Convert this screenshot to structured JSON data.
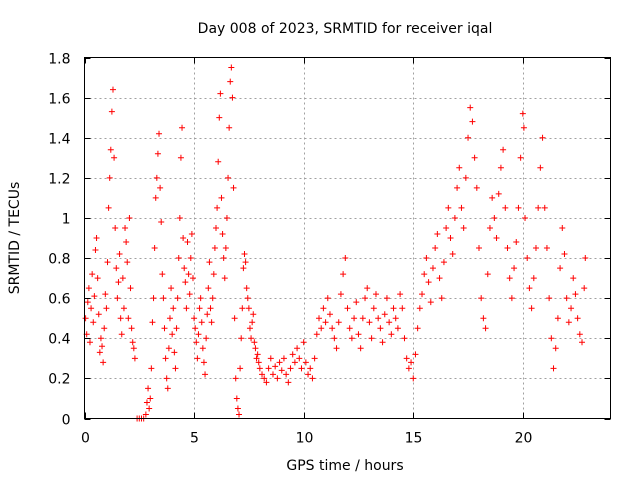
{
  "chart_data": {
    "type": "scatter",
    "title": "Day 008 of 2023, SRMTID for receiver iqal",
    "xlabel": "GPS time / hours",
    "ylabel": "SRMTID / TECUs",
    "xlim": [
      0,
      24
    ],
    "ylim": [
      0,
      1.8
    ],
    "xticks": [
      0,
      5,
      10,
      15,
      20
    ],
    "xtick_labels": [
      "0",
      "5",
      "10",
      "15",
      "20"
    ],
    "yticks": [
      0,
      0.2,
      0.4,
      0.6,
      0.8,
      1.0,
      1.2,
      1.4,
      1.6,
      1.8
    ],
    "ytick_labels": [
      "0",
      "0.2",
      "0.4",
      "0.6",
      "0.8",
      "1",
      "1.2",
      "1.4",
      "1.6",
      "1.8"
    ],
    "grid": true,
    "marker": "plus",
    "color": "#ff0000",
    "series": [
      {
        "name": "SRMTID",
        "points": [
          [
            0.05,
            0.5
          ],
          [
            0.1,
            0.42
          ],
          [
            0.15,
            0.58
          ],
          [
            0.2,
            0.65
          ],
          [
            0.25,
            0.38
          ],
          [
            0.3,
            0.55
          ],
          [
            0.35,
            0.72
          ],
          [
            0.4,
            0.48
          ],
          [
            0.45,
            0.61
          ],
          [
            0.5,
            0.84
          ],
          [
            0.55,
            0.9
          ],
          [
            0.6,
            0.7
          ],
          [
            0.65,
            0.52
          ],
          [
            0.7,
            0.33
          ],
          [
            0.75,
            0.4
          ],
          [
            0.8,
            0.36
          ],
          [
            0.85,
            0.28
          ],
          [
            0.9,
            0.45
          ],
          [
            0.95,
            0.62
          ],
          [
            1.0,
            0.55
          ],
          [
            1.05,
            0.78
          ],
          [
            1.1,
            1.05
          ],
          [
            1.15,
            1.2
          ],
          [
            1.2,
            1.34
          ],
          [
            1.25,
            1.53
          ],
          [
            1.3,
            1.64
          ],
          [
            1.35,
            1.3
          ],
          [
            1.4,
            0.95
          ],
          [
            1.45,
            0.75
          ],
          [
            1.5,
            0.6
          ],
          [
            1.55,
            0.68
          ],
          [
            1.6,
            0.82
          ],
          [
            1.65,
            0.5
          ],
          [
            1.7,
            0.42
          ],
          [
            1.75,
            0.7
          ],
          [
            1.8,
            0.55
          ],
          [
            1.85,
            0.95
          ],
          [
            1.9,
            0.88
          ],
          [
            1.95,
            0.78
          ],
          [
            2.0,
            0.5
          ],
          [
            2.05,
            1.0
          ],
          [
            2.1,
            0.65
          ],
          [
            2.15,
            0.45
          ],
          [
            2.2,
            0.38
          ],
          [
            2.25,
            0.35
          ],
          [
            2.3,
            0.3
          ],
          [
            2.4,
            0.0
          ],
          [
            2.5,
            0.0
          ],
          [
            2.6,
            0.0
          ],
          [
            2.7,
            0.0
          ],
          [
            2.8,
            0.02
          ],
          [
            2.85,
            0.08
          ],
          [
            2.9,
            0.15
          ],
          [
            2.95,
            0.05
          ],
          [
            3.0,
            0.1
          ],
          [
            3.05,
            0.25
          ],
          [
            3.1,
            0.48
          ],
          [
            3.15,
            0.6
          ],
          [
            3.2,
            0.85
          ],
          [
            3.25,
            1.1
          ],
          [
            3.3,
            1.2
          ],
          [
            3.35,
            1.32
          ],
          [
            3.4,
            1.42
          ],
          [
            3.45,
            1.15
          ],
          [
            3.5,
            0.98
          ],
          [
            3.55,
            0.72
          ],
          [
            3.6,
            0.6
          ],
          [
            3.65,
            0.45
          ],
          [
            3.7,
            0.3
          ],
          [
            3.75,
            0.2
          ],
          [
            3.8,
            0.15
          ],
          [
            3.85,
            0.35
          ],
          [
            3.9,
            0.5
          ],
          [
            3.95,
            0.65
          ],
          [
            4.0,
            0.42
          ],
          [
            4.05,
            0.55
          ],
          [
            4.1,
            0.33
          ],
          [
            4.15,
            0.25
          ],
          [
            4.2,
            0.45
          ],
          [
            4.25,
            0.6
          ],
          [
            4.3,
            0.8
          ],
          [
            4.35,
            1.0
          ],
          [
            4.4,
            1.3
          ],
          [
            4.45,
            1.45
          ],
          [
            4.5,
            0.9
          ],
          [
            4.55,
            0.75
          ],
          [
            4.6,
            0.68
          ],
          [
            4.65,
            0.55
          ],
          [
            4.7,
            0.88
          ],
          [
            4.75,
            0.72
          ],
          [
            4.8,
            0.62
          ],
          [
            4.85,
            0.8
          ],
          [
            4.9,
            0.92
          ],
          [
            4.95,
            0.7
          ],
          [
            5.0,
            0.5
          ],
          [
            5.05,
            0.45
          ],
          [
            5.1,
            0.38
          ],
          [
            5.15,
            0.3
          ],
          [
            5.2,
            0.42
          ],
          [
            5.25,
            0.55
          ],
          [
            5.3,
            0.6
          ],
          [
            5.35,
            0.48
          ],
          [
            5.4,
            0.35
          ],
          [
            5.45,
            0.28
          ],
          [
            5.5,
            0.22
          ],
          [
            5.55,
            0.4
          ],
          [
            5.6,
            0.52
          ],
          [
            5.65,
            0.65
          ],
          [
            5.7,
            0.78
          ],
          [
            5.75,
            0.55
          ],
          [
            5.8,
            0.48
          ],
          [
            5.85,
            0.6
          ],
          [
            5.9,
            0.72
          ],
          [
            5.95,
            0.85
          ],
          [
            6.0,
            0.95
          ],
          [
            6.05,
            1.05
          ],
          [
            6.1,
            1.28
          ],
          [
            6.15,
            1.5
          ],
          [
            6.2,
            1.62
          ],
          [
            6.25,
            1.1
          ],
          [
            6.3,
            0.92
          ],
          [
            6.35,
            0.8
          ],
          [
            6.4,
            0.7
          ],
          [
            6.45,
            0.85
          ],
          [
            6.5,
            1.0
          ],
          [
            6.55,
            1.2
          ],
          [
            6.6,
            1.45
          ],
          [
            6.65,
            1.68
          ],
          [
            6.7,
            1.75
          ],
          [
            6.75,
            1.6
          ],
          [
            6.8,
            1.15
          ],
          [
            6.85,
            0.5
          ],
          [
            6.9,
            0.2
          ],
          [
            6.95,
            0.1
          ],
          [
            7.0,
            0.05
          ],
          [
            7.05,
            0.02
          ],
          [
            7.1,
            0.25
          ],
          [
            7.15,
            0.4
          ],
          [
            7.2,
            0.55
          ],
          [
            7.25,
            0.75
          ],
          [
            7.3,
            0.82
          ],
          [
            7.35,
            0.78
          ],
          [
            7.4,
            0.65
          ],
          [
            7.45,
            0.6
          ],
          [
            7.5,
            0.55
          ],
          [
            7.55,
            0.45
          ],
          [
            7.6,
            0.4
          ],
          [
            7.65,
            0.48
          ],
          [
            7.7,
            0.52
          ],
          [
            7.75,
            0.38
          ],
          [
            7.8,
            0.35
          ],
          [
            7.85,
            0.3
          ],
          [
            7.9,
            0.32
          ],
          [
            7.95,
            0.28
          ],
          [
            8.0,
            0.25
          ],
          [
            8.1,
            0.22
          ],
          [
            8.2,
            0.2
          ],
          [
            8.3,
            0.18
          ],
          [
            8.4,
            0.25
          ],
          [
            8.5,
            0.3
          ],
          [
            8.6,
            0.22
          ],
          [
            8.7,
            0.26
          ],
          [
            8.8,
            0.2
          ],
          [
            8.9,
            0.28
          ],
          [
            9.0,
            0.24
          ],
          [
            9.1,
            0.3
          ],
          [
            9.2,
            0.22
          ],
          [
            9.3,
            0.18
          ],
          [
            9.4,
            0.25
          ],
          [
            9.5,
            0.32
          ],
          [
            9.6,
            0.28
          ],
          [
            9.7,
            0.35
          ],
          [
            9.8,
            0.3
          ],
          [
            9.9,
            0.25
          ],
          [
            10.0,
            0.38
          ],
          [
            10.1,
            0.28
          ],
          [
            10.2,
            0.22
          ],
          [
            10.3,
            0.25
          ],
          [
            10.4,
            0.2
          ],
          [
            10.5,
            0.3
          ],
          [
            10.6,
            0.42
          ],
          [
            10.7,
            0.5
          ],
          [
            10.8,
            0.45
          ],
          [
            10.9,
            0.55
          ],
          [
            11.0,
            0.48
          ],
          [
            11.1,
            0.6
          ],
          [
            11.2,
            0.52
          ],
          [
            11.3,
            0.45
          ],
          [
            11.4,
            0.4
          ],
          [
            11.5,
            0.35
          ],
          [
            11.6,
            0.48
          ],
          [
            11.7,
            0.62
          ],
          [
            11.8,
            0.72
          ],
          [
            11.9,
            0.8
          ],
          [
            12.0,
            0.55
          ],
          [
            12.1,
            0.45
          ],
          [
            12.2,
            0.4
          ],
          [
            12.3,
            0.5
          ],
          [
            12.4,
            0.58
          ],
          [
            12.5,
            0.42
          ],
          [
            12.6,
            0.35
          ],
          [
            12.7,
            0.5
          ],
          [
            12.8,
            0.6
          ],
          [
            12.9,
            0.65
          ],
          [
            13.0,
            0.48
          ],
          [
            13.1,
            0.4
          ],
          [
            13.2,
            0.55
          ],
          [
            13.3,
            0.62
          ],
          [
            13.4,
            0.5
          ],
          [
            13.5,
            0.45
          ],
          [
            13.6,
            0.38
          ],
          [
            13.7,
            0.52
          ],
          [
            13.8,
            0.6
          ],
          [
            13.9,
            0.48
          ],
          [
            14.0,
            0.42
          ],
          [
            14.1,
            0.55
          ],
          [
            14.2,
            0.5
          ],
          [
            14.3,
            0.45
          ],
          [
            14.4,
            0.62
          ],
          [
            14.5,
            0.55
          ],
          [
            14.6,
            0.4
          ],
          [
            14.7,
            0.3
          ],
          [
            14.8,
            0.25
          ],
          [
            14.9,
            0.28
          ],
          [
            15.0,
            0.2
          ],
          [
            15.1,
            0.32
          ],
          [
            15.2,
            0.45
          ],
          [
            15.3,
            0.55
          ],
          [
            15.4,
            0.62
          ],
          [
            15.5,
            0.72
          ],
          [
            15.6,
            0.8
          ],
          [
            15.7,
            0.68
          ],
          [
            15.8,
            0.58
          ],
          [
            15.9,
            0.75
          ],
          [
            16.0,
            0.85
          ],
          [
            16.1,
            0.92
          ],
          [
            16.2,
            0.7
          ],
          [
            16.3,
            0.6
          ],
          [
            16.4,
            0.78
          ],
          [
            16.5,
            0.95
          ],
          [
            16.6,
            1.05
          ],
          [
            16.7,
            0.9
          ],
          [
            16.8,
            0.82
          ],
          [
            16.9,
            1.0
          ],
          [
            17.0,
            1.15
          ],
          [
            17.1,
            1.25
          ],
          [
            17.2,
            1.05
          ],
          [
            17.3,
            0.95
          ],
          [
            17.4,
            1.2
          ],
          [
            17.5,
            1.4
          ],
          [
            17.6,
            1.55
          ],
          [
            17.7,
            1.48
          ],
          [
            17.8,
            1.3
          ],
          [
            17.9,
            1.15
          ],
          [
            18.0,
            0.85
          ],
          [
            18.1,
            0.6
          ],
          [
            18.2,
            0.5
          ],
          [
            18.3,
            0.45
          ],
          [
            18.4,
            0.72
          ],
          [
            18.5,
            0.95
          ],
          [
            18.6,
            1.1
          ],
          [
            18.7,
            1.0
          ],
          [
            18.8,
            0.9
          ],
          [
            18.9,
            1.12
          ],
          [
            19.0,
            1.25
          ],
          [
            19.1,
            1.34
          ],
          [
            19.2,
            1.05
          ],
          [
            19.3,
            0.85
          ],
          [
            19.4,
            0.7
          ],
          [
            19.5,
            0.6
          ],
          [
            19.6,
            0.75
          ],
          [
            19.7,
            0.88
          ],
          [
            19.8,
            1.05
          ],
          [
            19.9,
            1.3
          ],
          [
            20.0,
            1.52
          ],
          [
            20.05,
            1.45
          ],
          [
            20.1,
            1.0
          ],
          [
            20.2,
            0.8
          ],
          [
            20.3,
            0.65
          ],
          [
            20.4,
            0.55
          ],
          [
            20.5,
            0.7
          ],
          [
            20.6,
            0.85
          ],
          [
            20.7,
            1.05
          ],
          [
            20.8,
            1.25
          ],
          [
            20.9,
            1.4
          ],
          [
            21.0,
            1.05
          ],
          [
            21.1,
            0.85
          ],
          [
            21.2,
            0.6
          ],
          [
            21.3,
            0.4
          ],
          [
            21.4,
            0.25
          ],
          [
            21.5,
            0.35
          ],
          [
            21.6,
            0.5
          ],
          [
            21.7,
            0.75
          ],
          [
            21.8,
            0.95
          ],
          [
            21.9,
            0.82
          ],
          [
            22.0,
            0.6
          ],
          [
            22.1,
            0.48
          ],
          [
            22.2,
            0.55
          ],
          [
            22.3,
            0.7
          ],
          [
            22.4,
            0.62
          ],
          [
            22.5,
            0.5
          ],
          [
            22.6,
            0.42
          ],
          [
            22.7,
            0.38
          ],
          [
            22.8,
            0.65
          ],
          [
            22.85,
            0.8
          ]
        ]
      }
    ]
  }
}
